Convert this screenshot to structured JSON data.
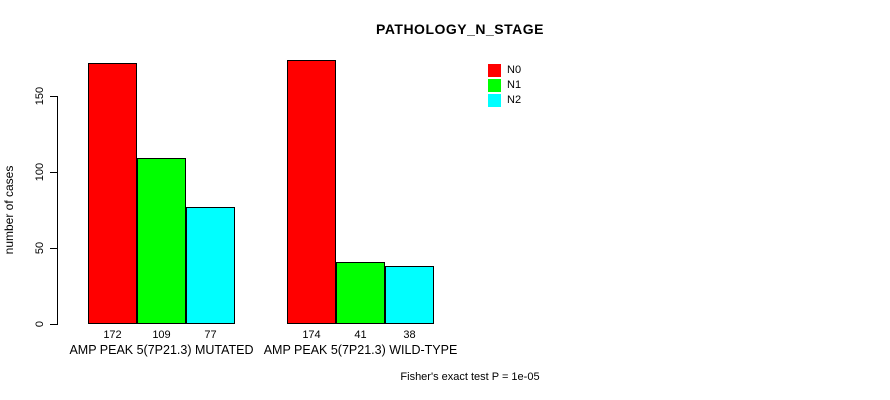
{
  "chart_data": {
    "type": "bar",
    "title": "PATHOLOGY_N_STAGE",
    "ylabel": "number of cases",
    "xlabel": "",
    "ylim": [
      0,
      150
    ],
    "yticks": [
      0,
      50,
      100,
      150
    ],
    "grid": false,
    "legend_position": "top-right",
    "categories": [
      "AMP PEAK 5(7P21.3) MUTATED",
      "AMP PEAK 5(7P21.3) WILD-TYPE"
    ],
    "series": [
      {
        "name": "N0",
        "color": "#ff0000",
        "values": [
          172,
          174
        ]
      },
      {
        "name": "N1",
        "color": "#00ff00",
        "values": [
          109,
          41
        ]
      },
      {
        "name": "N2",
        "color": "#00ffff",
        "values": [
          77,
          38
        ]
      }
    ],
    "bar_value_labels": [
      [
        172,
        109,
        77
      ],
      [
        174,
        41,
        38
      ]
    ],
    "note": "Fisher's exact test P = 1e-05"
  },
  "colors": {
    "background": "#ffffff",
    "axis": "#000000",
    "bar_border": "#000000",
    "n0": "#ff0000",
    "n1": "#00ff00",
    "n2": "#00ffff"
  }
}
